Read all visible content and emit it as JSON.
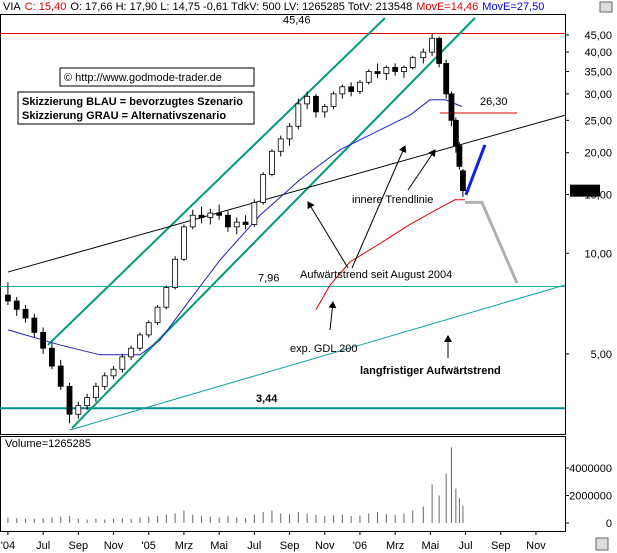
{
  "chart_data": {
    "type": "candlestick",
    "log_scale": true,
    "header": [
      {
        "text": "VIA",
        "color": "#000000"
      },
      {
        "text": "C: 15,40",
        "color": "#e00000"
      },
      {
        "text": "O: 17,66 H: 17,90 L: 14,75 -0,61 TdkV: 500 LV: 1265285 TotV: 213548",
        "color": "#000000"
      },
      {
        "text": "MovE=14,46",
        "color": "#e00000"
      },
      {
        "text": "MovE=27,50",
        "color": "#0000e0"
      }
    ],
    "copyright": "© http://www.godmode-trader.de",
    "notes": [
      "Skizzierung BLAU = bevorzugtes Szenario",
      "Skizzierung GRAU = Alternativszenario"
    ],
    "annotations": [
      "innere Trendlinie",
      "Aufwärtstrend seit August 2004",
      "exp. GDL 200",
      "langfristiger Aufwärtstrend"
    ],
    "volume_label": "Volume=1265285",
    "last_price": {
      "value": 15.4,
      "label": "15,40"
    },
    "x": [
      0,
      0.5,
      1,
      1.5,
      2,
      2.5,
      3,
      3.5,
      4,
      4.5,
      5,
      5.5,
      6,
      6.5,
      7,
      7.5,
      8,
      8.5,
      9,
      9.5,
      10,
      10.5,
      11,
      11.5,
      12,
      12.5,
      13,
      13.5,
      14,
      14.5,
      15,
      15.5,
      16,
      16.5,
      17,
      17.5,
      18,
      18.5,
      19,
      19.5,
      20,
      20.5,
      21,
      21.5,
      22,
      22.5,
      23,
      23.6,
      24.1,
      24.5,
      24.9,
      25.2,
      25.45,
      25.65,
      25.85
    ],
    "open": [
      7.5,
      7.2,
      6.8,
      6.4,
      5.8,
      5.2,
      4.6,
      4.0,
      3.3,
      3.5,
      3.7,
      4.0,
      4.3,
      4.5,
      4.9,
      5.2,
      5.7,
      6.2,
      6.9,
      7.9,
      9.6,
      12.0,
      13.0,
      12.8,
      13.2,
      13.0,
      12.0,
      12.4,
      12.2,
      14.2,
      17.2,
      20.2,
      22.0,
      24.0,
      28.0,
      29.5,
      26.5,
      27.5,
      30.0,
      31.5,
      30.5,
      32.5,
      35.0,
      34.5,
      36.0,
      35.0,
      36.0,
      38.5,
      40,
      44,
      37,
      30,
      25,
      21,
      17.66
    ],
    "high": [
      8.2,
      7.4,
      7.0,
      6.6,
      6.0,
      5.4,
      4.8,
      4.1,
      3.6,
      3.8,
      4.1,
      4.4,
      4.6,
      5.0,
      5.3,
      5.8,
      6.3,
      7.0,
      8.0,
      9.8,
      12.2,
      13.5,
      13.8,
      13.6,
      14.0,
      13.4,
      12.8,
      13.0,
      14.5,
      17.5,
      20.5,
      22.5,
      24.5,
      29.0,
      30.5,
      30.0,
      28.0,
      30.5,
      32.0,
      32.5,
      33.0,
      35.5,
      37.0,
      36.5,
      37.0,
      36.5,
      39.0,
      41,
      45.5,
      44.5,
      38,
      30.5,
      25.5,
      21.5,
      17.9
    ],
    "low": [
      7.0,
      6.5,
      6.2,
      5.6,
      5.0,
      4.5,
      3.9,
      3.1,
      3.2,
      3.4,
      3.6,
      3.9,
      4.2,
      4.4,
      4.8,
      5.1,
      5.6,
      6.1,
      6.8,
      7.8,
      9.5,
      11.8,
      12.3,
      12.2,
      12.6,
      11.6,
      11.4,
      11.8,
      12.0,
      14.0,
      17.0,
      19.5,
      21.0,
      23.5,
      27.0,
      25.5,
      25.5,
      27.0,
      29.0,
      29.5,
      30.0,
      32.0,
      33.5,
      33.0,
      34.0,
      33.5,
      35.5,
      37,
      39,
      36,
      29,
      24,
      20,
      17.8,
      14.75
    ],
    "close": [
      7.2,
      6.8,
      6.4,
      5.8,
      5.2,
      4.6,
      4.0,
      3.3,
      3.5,
      3.7,
      4.0,
      4.3,
      4.5,
      4.9,
      5.2,
      5.7,
      6.2,
      6.9,
      7.9,
      9.6,
      12.0,
      13.0,
      12.8,
      13.2,
      13.0,
      12.0,
      12.4,
      12.2,
      14.2,
      17.2,
      20.2,
      22.0,
      24.0,
      28.0,
      29.5,
      26.5,
      27.5,
      30.0,
      31.5,
      30.5,
      32.5,
      35.0,
      34.5,
      36.0,
      35.0,
      36.0,
      38.5,
      40,
      44,
      37,
      30,
      25,
      21,
      18.2,
      15.4
    ],
    "volume": [
      400000,
      350000,
      300000,
      300000,
      350000,
      400000,
      450000,
      500000,
      300000,
      250000,
      300000,
      250000,
      300000,
      350000,
      300000,
      400000,
      450000,
      500000,
      600000,
      700000,
      900000,
      600000,
      500000,
      450000,
      400000,
      500000,
      400000,
      350000,
      600000,
      800000,
      900000,
      700000,
      650000,
      800000,
      700000,
      600000,
      500000,
      550000,
      600000,
      500000,
      550000,
      700000,
      800000,
      650000,
      600000,
      700000,
      900000,
      1200000,
      2800000,
      2000000,
      3600000,
      5500000,
      2500000,
      1800000,
      1265285
    ],
    "xlim": [
      -0.45,
      31.65
    ],
    "xticks": [
      {
        "value": 0,
        "label": "'04"
      },
      {
        "value": 2,
        "label": "Jul"
      },
      {
        "value": 4,
        "label": "Sep"
      },
      {
        "value": 6,
        "label": "Nov"
      },
      {
        "value": 8,
        "label": "'05"
      },
      {
        "value": 10,
        "label": "Mrz"
      },
      {
        "value": 12,
        "label": "Mai"
      },
      {
        "value": 14,
        "label": "Jul"
      },
      {
        "value": 16,
        "label": "Sep"
      },
      {
        "value": 18,
        "label": "Nov"
      },
      {
        "value": 20,
        "label": "'06"
      },
      {
        "value": 22,
        "label": "Mrz"
      },
      {
        "value": 24,
        "label": "Mai"
      },
      {
        "value": 26,
        "label": "Jul"
      },
      {
        "value": 28,
        "label": "Sep"
      },
      {
        "value": 30,
        "label": "Nov"
      }
    ],
    "ylim": [
      2.92,
      50.6
    ],
    "yticks": [
      {
        "value": 45,
        "label": "45,00"
      },
      {
        "value": 40,
        "label": "40,00"
      },
      {
        "value": 35,
        "label": "35,00"
      },
      {
        "value": 30,
        "label": "30,00"
      },
      {
        "value": 25,
        "label": "25,00"
      },
      {
        "value": 20,
        "label": "20,00"
      },
      {
        "value": 15,
        "label": "15,00"
      },
      {
        "value": 10,
        "label": "10,00"
      },
      {
        "value": 5,
        "label": "5,00"
      }
    ],
    "volume_ylim": [
      0,
      6250000
    ],
    "volume_yticks": [
      0,
      2000000,
      4000000
    ],
    "levels": [
      {
        "value": 45.46,
        "label": "45,46",
        "color": "#e00000"
      },
      {
        "value": 26.3,
        "label": "26,30",
        "color": "#e00000"
      },
      {
        "value": 7.96,
        "label": "7,96",
        "color": "#10b0b0"
      },
      {
        "value": 3.44,
        "label": "3,44",
        "color": "#008a8a"
      }
    ],
    "moving_averages": [
      {
        "color": "#2020c0",
        "x": [
          0,
          2.95,
          5.23,
          7.5,
          8.64,
          10.34,
          12.05,
          14.32,
          16.59,
          18.86,
          21.14,
          22.84,
          23.98,
          24.83,
          25.8
        ],
        "values": [
          5.9,
          5.32,
          4.97,
          4.97,
          5.5,
          7.26,
          9.55,
          13.0,
          16.6,
          20.4,
          23.4,
          25.9,
          28.8,
          28.8,
          27.5
        ]
      },
      {
        "color": "#e00000",
        "x": [
          17.5,
          18.3,
          19.43,
          21.14,
          22.84,
          24.55,
          25.4,
          25.97
        ],
        "values": [
          6.78,
          8.04,
          9.42,
          10.7,
          12.2,
          13.7,
          14.46,
          14.46
        ]
      }
    ],
    "lines": [
      {
        "color": "#009a7a",
        "width": 2,
        "points": [
          [
            2.27,
            5.32
          ],
          [
            21.42,
            50.6
          ]
        ]
      },
      {
        "color": "#009a7a",
        "width": 2,
        "points": [
          [
            3.64,
            3.0
          ],
          [
            26.53,
            50.6
          ]
        ]
      },
      {
        "color": "#000000",
        "width": 1,
        "points": [
          [
            0,
            8.79
          ],
          [
            31.65,
            25.9
          ]
        ]
      },
      {
        "color": "#10a0a0",
        "width": 1,
        "points": [
          [
            3.52,
            2.96
          ],
          [
            31.65,
            8.04
          ]
        ]
      },
      {
        "color": "#1020e0",
        "width": 3,
        "points": [
          [
            26.02,
            14.96
          ],
          [
            27.1,
            21.1
          ]
        ]
      },
      {
        "color": "#b0b0b0",
        "width": 3,
        "points": [
          [
            25.97,
            14.2
          ],
          [
            26.93,
            14.2
          ],
          [
            28.92,
            8.15
          ]
        ]
      }
    ]
  }
}
